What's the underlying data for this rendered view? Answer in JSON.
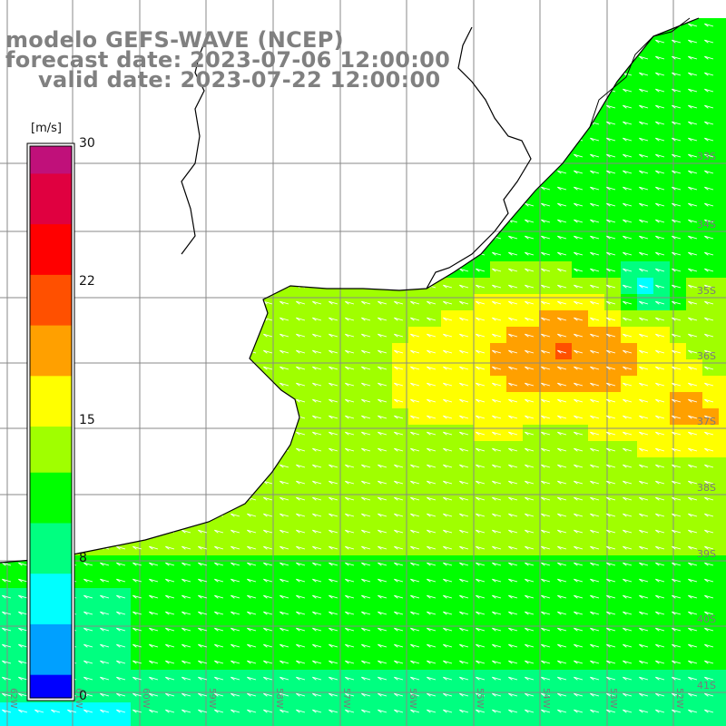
{
  "header": {
    "model_line": "modelo GEFS-WAVE (NCEP)",
    "forecast_line": "forecast date: 2023-07-06 12:00:00",
    "valid_line": "valid date: 2023-07-22 12:00:00"
  },
  "colorbar": {
    "unit": "[m/s]",
    "min": 0,
    "max": 30,
    "tick_labels": [
      "30",
      "22",
      "15",
      "8",
      "0"
    ],
    "tick_values": [
      30,
      22,
      15,
      8,
      0
    ],
    "colors": [
      "#0000ff",
      "#00a0ff",
      "#00ffff",
      "#00ff80",
      "#00ff00",
      "#a0ff00",
      "#ffff00",
      "#ffa000",
      "#ff5000",
      "#ff0000",
      "#e00040",
      "#c0107a"
    ]
  },
  "map": {
    "latitude_labels": [
      "33S",
      "34S",
      "35S",
      "36S",
      "37S",
      "38S",
      "39S",
      "40S",
      "41S"
    ],
    "latitude_values": [
      -33,
      -34,
      -35,
      -36,
      -37,
      -38,
      -39,
      -40,
      -41
    ],
    "longitude_labels": [
      "62W",
      "61W",
      "60W",
      "59W",
      "58W",
      "57W",
      "56W",
      "55W",
      "54W",
      "53W",
      "52W",
      "51W"
    ],
    "longitude_values": [
      -62,
      -61,
      -60,
      -59,
      -58,
      -57,
      -56,
      -55,
      -54,
      -53,
      -52,
      -51
    ],
    "land_color": "#ffffff",
    "coast_color": "#000000",
    "grid_color": "#888888",
    "arrow_color": "#ffffff"
  }
}
